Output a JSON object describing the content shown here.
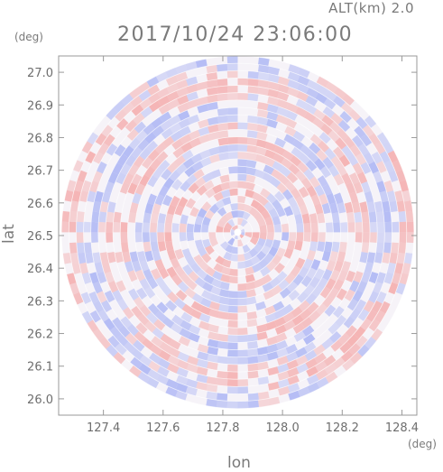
{
  "header": {
    "alt_label": "ALT(km) 2.0",
    "timestamp": "2017/10/24 23:06:00"
  },
  "axes": {
    "y_unit": "(deg)",
    "x_unit": "(deg)",
    "y_label": "lat",
    "x_label": "lon"
  },
  "chart_data": {
    "type": "heatmap",
    "title": "2017/10/24 23:06:00",
    "xlabel": "lon",
    "ylabel": "lat",
    "x_unit": "deg",
    "y_unit": "deg",
    "xlim": [
      127.25,
      128.45
    ],
    "ylim": [
      25.95,
      27.05
    ],
    "xticks": [
      127.4,
      127.6,
      127.8,
      128.0,
      128.2,
      128.4
    ],
    "yticks": [
      26.0,
      26.1,
      26.2,
      26.3,
      26.4,
      26.5,
      26.6,
      26.7,
      26.8,
      26.9,
      27.0
    ],
    "x_tick_labels": [
      "127.4",
      "127.6",
      "127.8",
      "128.0",
      "128.2",
      "128.4"
    ],
    "y_tick_labels": [
      "26.0",
      "26.1",
      "26.2",
      "26.3",
      "26.4",
      "26.5",
      "26.6",
      "26.7",
      "26.8",
      "26.9",
      "27.0"
    ],
    "center": {
      "lon": 127.85,
      "lat": 26.51
    },
    "radius_deg": {
      "lon": 0.6,
      "lat": 0.54
    },
    "field": "radial velocity pattern (positive / negative alternating)",
    "altitude_km": 2.0,
    "grid": false,
    "legend": "none",
    "colors": {
      "positive": "#f4a9a9",
      "negative": "#a9b3f4",
      "neutral": "#ffffff",
      "frame": "#999999"
    }
  }
}
